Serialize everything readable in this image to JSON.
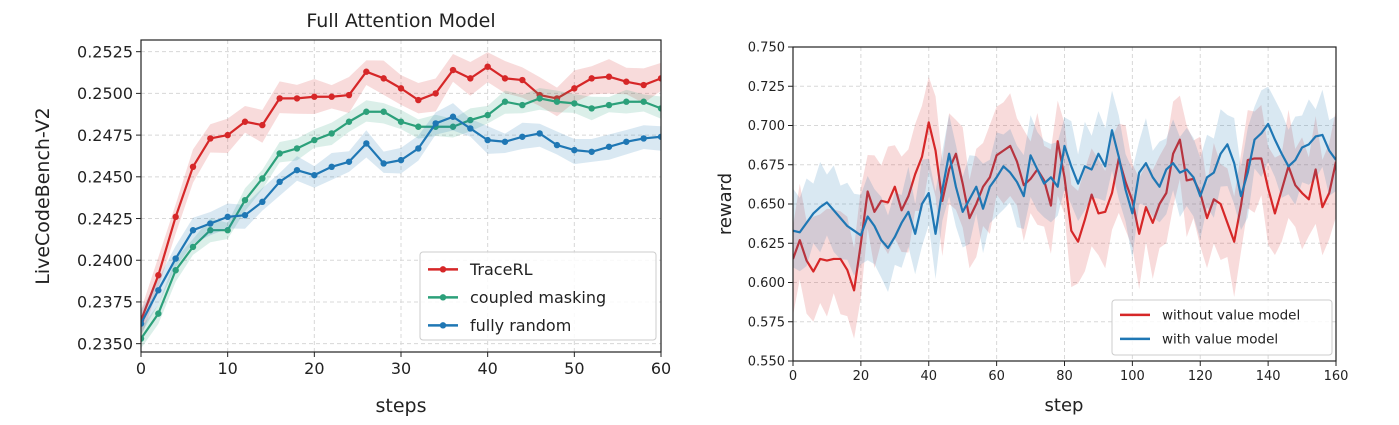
{
  "chart_data": [
    {
      "type": "line",
      "title": "Full Attention Model",
      "xlabel": "steps",
      "ylabel": "LiveCodeBench-V2",
      "xlim": [
        0,
        60
      ],
      "ylim": [
        0.2345,
        0.2532
      ],
      "xticks": [
        0,
        10,
        20,
        30,
        40,
        50,
        60
      ],
      "yticks": [
        "0.2350",
        "0.2375",
        "0.2400",
        "0.2425",
        "0.2450",
        "0.2475",
        "0.2500",
        "0.2525"
      ],
      "grid": true,
      "legend_position": "lower-right",
      "x": [
        0,
        2,
        4,
        6,
        8,
        10,
        12,
        14,
        16,
        18,
        20,
        22,
        24,
        26,
        28,
        30,
        32,
        34,
        36,
        38,
        40,
        42,
        44,
        46,
        48,
        50,
        52,
        54,
        56,
        58,
        60
      ],
      "series": [
        {
          "name": "TraceRL",
          "color": "#d62728",
          "markers": true,
          "band": 0.0009,
          "values": [
            0.2364,
            0.2391,
            0.2426,
            0.2456,
            0.2473,
            0.2475,
            0.2483,
            0.2481,
            0.2497,
            0.2497,
            0.2498,
            0.2498,
            0.2499,
            0.2513,
            0.2509,
            0.2503,
            0.2496,
            0.25,
            0.2514,
            0.2509,
            0.2516,
            0.2509,
            0.2508,
            0.2499,
            0.2497,
            0.2503,
            0.2509,
            0.251,
            0.2507,
            0.2505,
            0.2509
          ]
        },
        {
          "name": "coupled masking",
          "color": "#2ca07a",
          "markers": true,
          "band": 0.0006,
          "values": [
            0.2353,
            0.2368,
            0.2394,
            0.2408,
            0.2418,
            0.2418,
            0.2436,
            0.2449,
            0.2464,
            0.2467,
            0.2472,
            0.2476,
            0.2483,
            0.2489,
            0.2489,
            0.2483,
            0.248,
            0.248,
            0.248,
            0.2484,
            0.2487,
            0.2495,
            0.2493,
            0.2497,
            0.2495,
            0.2494,
            0.2491,
            0.2493,
            0.2495,
            0.2495,
            0.2491
          ]
        },
        {
          "name": "fully random",
          "color": "#1f77b4",
          "markers": true,
          "band": 0.0007,
          "values": [
            0.2362,
            0.2382,
            0.2401,
            0.2418,
            0.2422,
            0.2426,
            0.2427,
            0.2435,
            0.2447,
            0.2454,
            0.2451,
            0.2456,
            0.2459,
            0.247,
            0.2458,
            0.246,
            0.2467,
            0.2482,
            0.2486,
            0.2479,
            0.2472,
            0.2471,
            0.2474,
            0.2476,
            0.2469,
            0.2466,
            0.2465,
            0.2468,
            0.2471,
            0.2473,
            0.2474
          ]
        }
      ]
    },
    {
      "type": "line",
      "title": "",
      "xlabel": "step",
      "ylabel": "reward",
      "xlim": [
        0,
        160
      ],
      "ylim": [
        0.55,
        0.75
      ],
      "xticks": [
        0,
        20,
        40,
        60,
        80,
        100,
        120,
        140,
        160
      ],
      "yticks": [
        "0.550",
        "0.575",
        "0.600",
        "0.625",
        "0.650",
        "0.675",
        "0.700",
        "0.725",
        "0.750"
      ],
      "grid": true,
      "legend_position": "lower-right",
      "x_step": 2,
      "series": [
        {
          "name": "without value model",
          "color": "#d62728",
          "markers": false,
          "band": 0.03,
          "values": [
            0.615,
            0.627,
            0.614,
            0.607,
            0.615,
            0.614,
            0.615,
            0.615,
            0.608,
            0.595,
            0.625,
            0.658,
            0.645,
            0.652,
            0.651,
            0.661,
            0.646,
            0.655,
            0.669,
            0.68,
            0.702,
            0.684,
            0.652,
            0.672,
            0.682,
            0.663,
            0.641,
            0.65,
            0.661,
            0.667,
            0.681,
            0.684,
            0.687,
            0.677,
            0.662,
            0.666,
            0.672,
            0.665,
            0.649,
            0.69,
            0.667,
            0.633,
            0.626,
            0.64,
            0.656,
            0.644,
            0.645,
            0.657,
            0.679,
            0.664,
            0.652,
            0.631,
            0.648,
            0.638,
            0.65,
            0.657,
            0.682,
            0.691,
            0.665,
            0.666,
            0.657,
            0.641,
            0.653,
            0.65,
            0.638,
            0.626,
            0.649,
            0.678,
            0.679,
            0.679,
            0.66,
            0.644,
            0.659,
            0.674,
            0.662,
            0.657,
            0.653,
            0.672,
            0.648,
            0.657,
            0.677
          ]
        },
        {
          "name": "with value model",
          "color": "#1f77b4",
          "markers": false,
          "band": 0.024,
          "values": [
            0.633,
            0.632,
            0.638,
            0.644,
            0.648,
            0.651,
            0.646,
            0.641,
            0.636,
            0.633,
            0.63,
            0.642,
            0.636,
            0.627,
            0.622,
            0.629,
            0.638,
            0.645,
            0.631,
            0.65,
            0.657,
            0.631,
            0.659,
            0.682,
            0.661,
            0.645,
            0.653,
            0.661,
            0.647,
            0.661,
            0.667,
            0.674,
            0.67,
            0.664,
            0.655,
            0.681,
            0.672,
            0.663,
            0.667,
            0.661,
            0.687,
            0.674,
            0.663,
            0.674,
            0.672,
            0.682,
            0.674,
            0.697,
            0.68,
            0.659,
            0.644,
            0.67,
            0.676,
            0.667,
            0.661,
            0.672,
            0.676,
            0.67,
            0.672,
            0.667,
            0.655,
            0.667,
            0.67,
            0.682,
            0.688,
            0.676,
            0.655,
            0.67,
            0.691,
            0.695,
            0.701,
            0.691,
            0.682,
            0.674,
            0.678,
            0.686,
            0.688,
            0.693,
            0.694,
            0.684,
            0.678
          ]
        }
      ]
    }
  ]
}
